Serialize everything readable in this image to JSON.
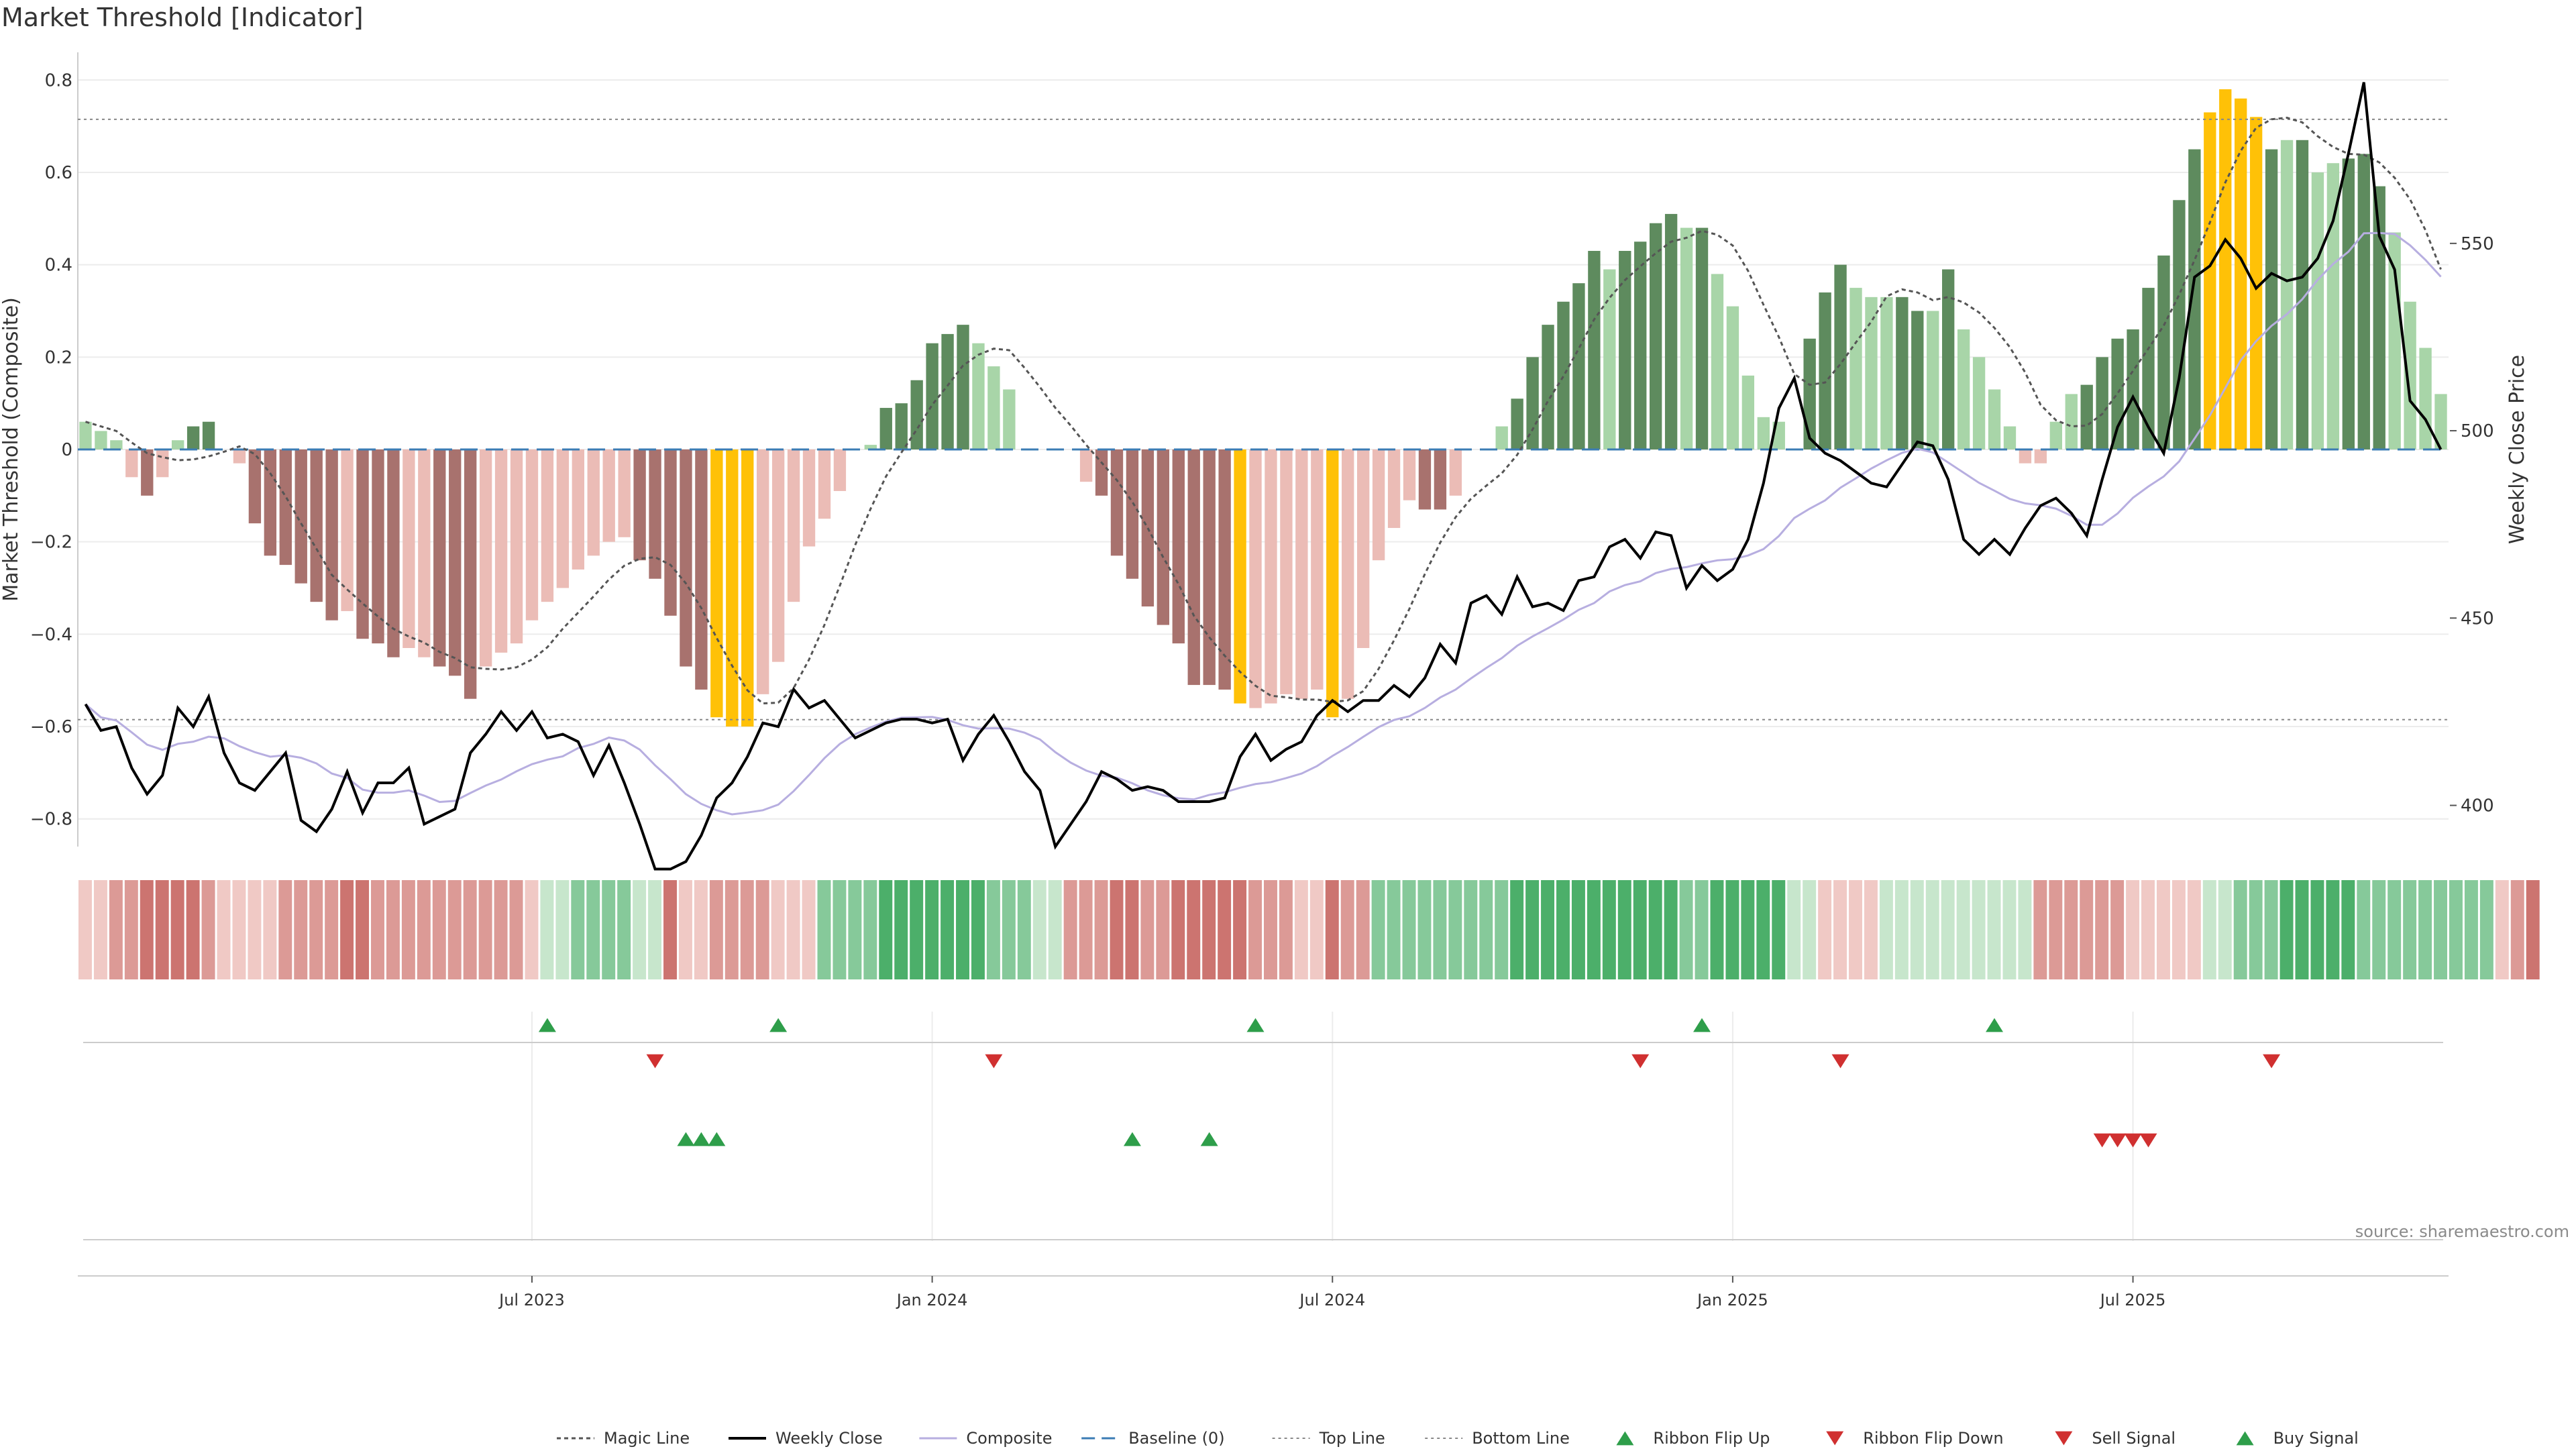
{
  "title": "Market Threshold [Indicator]",
  "source": "source: sharemaestro.com",
  "colors": {
    "dark_green": "#5e8b5e",
    "light_green": "#a8d5a8",
    "dark_red": "#a8726e",
    "light_red": "#ebbcb6",
    "gold": "#ffc107",
    "close": "#000000",
    "composite": "#b7aee0",
    "magic": "#555555",
    "baseline": "#3b7cb4",
    "buy": "#2e9e4a",
    "sell": "#d03030"
  },
  "chart_data": {
    "type": "bar",
    "title": "Market Threshold [Indicator]",
    "ylabel": "Market Threshold (Composite)",
    "y2label": "Weekly Close Price",
    "ylim": [
      -0.86,
      0.86
    ],
    "y2lim": [
      389,
      601
    ],
    "yticks": [
      0.8,
      0.6,
      0.4,
      0.2,
      0,
      -0.2,
      -0.4,
      -0.6,
      -0.8
    ],
    "yticklabels": [
      "0.8",
      "0.6",
      "0.4",
      "0.2",
      "0",
      "−0.2",
      "−0.4",
      "−0.6",
      "−0.8"
    ],
    "y2ticks": [
      550,
      500,
      450,
      400
    ],
    "y2ticklabels": [
      "550",
      "500",
      "450",
      "400"
    ],
    "top_line": 0.715,
    "bottom_line": -0.585,
    "xticks": [
      {
        "week": 29.5,
        "label": "Jul 2023"
      },
      {
        "week": 55.5,
        "label": "Jan 2024"
      },
      {
        "week": 81.5,
        "label": "Jul 2024"
      },
      {
        "week": 107.5,
        "label": "Jan 2025"
      },
      {
        "week": 133.5,
        "label": "Jul 2025"
      }
    ],
    "bar_values": [
      0.06,
      0.04,
      0.02,
      -0.06,
      -0.1,
      -0.06,
      0.02,
      0.05,
      0.06,
      0,
      -0.03,
      -0.16,
      -0.23,
      -0.25,
      -0.29,
      -0.33,
      -0.37,
      -0.35,
      -0.41,
      -0.42,
      -0.45,
      -0.43,
      -0.45,
      -0.47,
      -0.49,
      -0.54,
      -0.47,
      -0.44,
      -0.42,
      -0.37,
      -0.33,
      -0.3,
      -0.26,
      -0.23,
      -0.2,
      -0.19,
      -0.24,
      -0.28,
      -0.36,
      -0.47,
      -0.52,
      -0.58,
      -0.6,
      -0.6,
      -0.53,
      -0.46,
      -0.33,
      -0.21,
      -0.15,
      -0.09,
      0,
      0.01,
      0.09,
      0.1,
      0.15,
      0.23,
      0.25,
      0.27,
      0.23,
      0.18,
      0.13,
      0,
      0,
      0,
      0,
      -0.07,
      -0.1,
      -0.23,
      -0.28,
      -0.34,
      -0.38,
      -0.42,
      -0.51,
      -0.51,
      -0.52,
      -0.55,
      -0.56,
      -0.55,
      -0.53,
      -0.54,
      -0.52,
      -0.58,
      -0.54,
      -0.43,
      -0.24,
      -0.17,
      -0.11,
      -0.13,
      -0.13,
      -0.1,
      0,
      0,
      0.05,
      0.11,
      0.2,
      0.27,
      0.32,
      0.36,
      0.43,
      0.39,
      0.43,
      0.45,
      0.49,
      0.51,
      0.48,
      0.48,
      0.38,
      0.31,
      0.16,
      0.07,
      0.06,
      0,
      0.24,
      0.34,
      0.4,
      0.35,
      0.33,
      0.33,
      0.33,
      0.3,
      0.3,
      0.39,
      0.26,
      0.2,
      0.13,
      0.05,
      -0.03,
      -0.03,
      0.06,
      0.12,
      0.14,
      0.2,
      0.24,
      0.26,
      0.35,
      0.42,
      0.54,
      0.65,
      0.73,
      0.78,
      0.76,
      0.72,
      0.65,
      0.67,
      0.67,
      0.6,
      0.62,
      0.63,
      0.64,
      0.57,
      0.47,
      0.32,
      0.22,
      0.12
    ],
    "bar_colors": [
      "lg",
      "lg",
      "lg",
      "lr",
      "dr",
      "lr",
      "lg",
      "dg",
      "dg",
      "lg",
      "lr",
      "dr",
      "dr",
      "dr",
      "dr",
      "dr",
      "dr",
      "lr",
      "dr",
      "dr",
      "dr",
      "lr",
      "lr",
      "dr",
      "dr",
      "dr",
      "lr",
      "lr",
      "lr",
      "lr",
      "lr",
      "lr",
      "lr",
      "lr",
      "lr",
      "lr",
      "dr",
      "dr",
      "dr",
      "dr",
      "dr",
      "au",
      "au",
      "au",
      "lr",
      "lr",
      "lr",
      "lr",
      "lr",
      "lr",
      "lg",
      "lg",
      "dg",
      "dg",
      "dg",
      "dg",
      "dg",
      "dg",
      "lg",
      "lg",
      "lg",
      "lg",
      "lg",
      "lg",
      "lg",
      "lr",
      "dr",
      "dr",
      "dr",
      "dr",
      "dr",
      "dr",
      "dr",
      "dr",
      "dr",
      "au",
      "lr",
      "lr",
      "lr",
      "lr",
      "lr",
      "au",
      "lr",
      "lr",
      "lr",
      "lr",
      "lr",
      "dr",
      "dr",
      "lr",
      "lg",
      "lg",
      "lg",
      "dg",
      "dg",
      "dg",
      "dg",
      "dg",
      "dg",
      "lg",
      "dg",
      "dg",
      "dg",
      "dg",
      "lg",
      "dg",
      "lg",
      "lg",
      "lg",
      "lg",
      "lg",
      "lg",
      "dg",
      "dg",
      "dg",
      "lg",
      "lg",
      "lg",
      "dg",
      "dg",
      "lg",
      "dg",
      "lg",
      "lg",
      "lg",
      "lg",
      "lr",
      "lr",
      "lg",
      "lg",
      "dg",
      "dg",
      "dg",
      "dg",
      "dg",
      "dg",
      "dg",
      "dg",
      "au",
      "au",
      "au",
      "au",
      "dg",
      "lg",
      "dg",
      "lg",
      "lg",
      "dg",
      "dg",
      "dg",
      "lg",
      "lg",
      "lg",
      "lg",
      "lg"
    ],
    "weekly_close": [
      427,
      420,
      421,
      410,
      403,
      408,
      426,
      421,
      429,
      414,
      406,
      404,
      409,
      414,
      396,
      393,
      399,
      409,
      398,
      406,
      406,
      410,
      395,
      397,
      399,
      414,
      419,
      425,
      420,
      425,
      418,
      419,
      417,
      408,
      416,
      406,
      395,
      383,
      383,
      385,
      392,
      402,
      406,
      413,
      422,
      421,
      431,
      426,
      428,
      423,
      418,
      420,
      422,
      423,
      423,
      422,
      423,
      412,
      419,
      424,
      417,
      409,
      404,
      389,
      395,
      401,
      409,
      407,
      404,
      405,
      404,
      401,
      401,
      401,
      402,
      413,
      419,
      412,
      415,
      417,
      424,
      428,
      425,
      428,
      428,
      432,
      429,
      434,
      443,
      438,
      454,
      456,
      451,
      461,
      453,
      454,
      452,
      460,
      461,
      469,
      471,
      466,
      473,
      472,
      458,
      464,
      460,
      463,
      471,
      486,
      506,
      514,
      498,
      494,
      492,
      489,
      486,
      485,
      491,
      497,
      496,
      487,
      471,
      467,
      471,
      467,
      474,
      480,
      482,
      478,
      472,
      487,
      501,
      509,
      501,
      494,
      514,
      541,
      544,
      551,
      546,
      538,
      542,
      540,
      541,
      546,
      556,
      574,
      593,
      552,
      543,
      508,
      503,
      495
    ]
  },
  "strip": {
    "colors": [
      "lr",
      "lr",
      "mr",
      "mr",
      "dr",
      "dr",
      "dr",
      "dr",
      "mr",
      "lr",
      "lr",
      "lr",
      "lr",
      "mr",
      "mr",
      "mr",
      "mr",
      "dr",
      "dr",
      "mr",
      "mr",
      "mr",
      "mr",
      "mr",
      "mr",
      "mr",
      "mr",
      "mr",
      "mr",
      "lr",
      "lg",
      "lg",
      "mg",
      "mg",
      "mg",
      "mg",
      "lg",
      "lg",
      "dr",
      "lr",
      "lr",
      "mr",
      "mr",
      "mr",
      "mr",
      "lr",
      "lr",
      "lr",
      "mg",
      "mg",
      "mg",
      "mg",
      "dg",
      "dg",
      "dg",
      "dg",
      "dg",
      "dg",
      "dg",
      "mg",
      "mg",
      "mg",
      "lg",
      "lg",
      "mr",
      "mr",
      "mr",
      "dr",
      "dr",
      "mr",
      "mr",
      "dr",
      "dr",
      "dr",
      "dr",
      "dr",
      "mr",
      "mr",
      "mr",
      "lr",
      "lr",
      "dr",
      "mr",
      "mr",
      "mg",
      "mg",
      "mg",
      "mg",
      "mg",
      "mg",
      "mg",
      "mg",
      "mg",
      "dg",
      "dg",
      "dg",
      "dg",
      "dg",
      "dg",
      "dg",
      "dg",
      "dg",
      "dg",
      "dg",
      "mg",
      "mg",
      "dg",
      "dg",
      "dg",
      "dg",
      "dg",
      "lg",
      "lg",
      "lr",
      "lr",
      "lr",
      "lr",
      "lg",
      "lg",
      "lg",
      "lg",
      "lg",
      "lg",
      "lg",
      "lg",
      "lg",
      "lg",
      "mr",
      "mr",
      "mr",
      "mr",
      "mr",
      "mr",
      "lr",
      "lr",
      "lr",
      "lr",
      "lr",
      "lg",
      "lg",
      "mg",
      "mg",
      "mg",
      "dg",
      "dg",
      "dg",
      "dg",
      "dg",
      "mg",
      "mg",
      "mg",
      "mg",
      "mg",
      "mg",
      "mg",
      "mg",
      "mg",
      "lr",
      "mr",
      "dr"
    ],
    "palette": {
      "lg": "#c7e6cc",
      "mg": "#86c99a",
      "dg": "#4caf6a",
      "lr": "#f0c9c5",
      "mr": "#dc9a96",
      "dr": "#cc7470"
    }
  },
  "ribbon_flip_up": [
    30,
    45,
    76,
    105,
    124
  ],
  "ribbon_flip_down": [
    37,
    59,
    101,
    114,
    142
  ],
  "buy_signals": [
    39,
    40,
    41,
    68,
    73
  ],
  "sell_signals": [
    131,
    132,
    133,
    134
  ],
  "legend": [
    {
      "key": "magic",
      "label": "Magic Line"
    },
    {
      "key": "close",
      "label": "Weekly Close"
    },
    {
      "key": "composite",
      "label": "Composite"
    },
    {
      "key": "baseline",
      "label": "Baseline (0)"
    },
    {
      "key": "top",
      "label": "Top Line"
    },
    {
      "key": "bottom",
      "label": "Bottom Line"
    },
    {
      "key": "flipup",
      "label": "Ribbon Flip Up"
    },
    {
      "key": "flipdown",
      "label": "Ribbon Flip Down"
    },
    {
      "key": "sell",
      "label": "Sell Signal"
    },
    {
      "key": "buy",
      "label": "Buy Signal"
    }
  ]
}
